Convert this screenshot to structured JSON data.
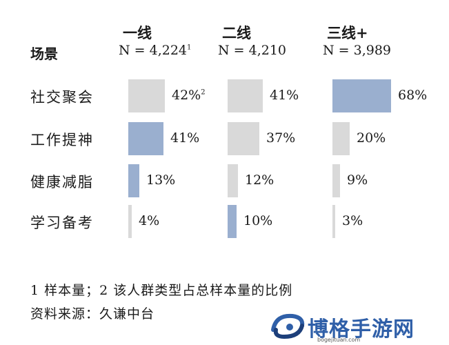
{
  "chart_data": {
    "type": "table",
    "row_header": "场景",
    "columns": [
      {
        "title": "一线",
        "n_label": "N = 4,224",
        "n_sup": "1"
      },
      {
        "title": "二线",
        "n_label": "N = 4,210",
        "n_sup": ""
      },
      {
        "title": "三线+",
        "n_label": "N = 3,989",
        "n_sup": ""
      }
    ],
    "rows": [
      {
        "label": "社交聚会",
        "values": [
          42,
          41,
          68
        ],
        "labels": [
          "42%",
          "41%",
          "68%"
        ],
        "sups": [
          "2",
          "",
          ""
        ],
        "highlight": [
          false,
          false,
          true
        ]
      },
      {
        "label": "工作提神",
        "values": [
          41,
          37,
          20
        ],
        "labels": [
          "41%",
          "37%",
          "20%"
        ],
        "sups": [
          "",
          "",
          ""
        ],
        "highlight": [
          true,
          false,
          false
        ]
      },
      {
        "label": "健康减脂",
        "values": [
          13,
          12,
          9
        ],
        "labels": [
          "13%",
          "12%",
          "9%"
        ],
        "sups": [
          "",
          "",
          ""
        ],
        "highlight": [
          true,
          false,
          false
        ]
      },
      {
        "label": "学习备考",
        "values": [
          4,
          10,
          3
        ],
        "labels": [
          "4%",
          "10%",
          "3%"
        ],
        "sups": [
          "",
          "",
          ""
        ],
        "highlight": [
          false,
          true,
          false
        ]
      }
    ],
    "unit": "%",
    "colors": {
      "highlight": "#9aafcf",
      "normal": "#d9d9d9"
    }
  },
  "footnotes": {
    "note": "1 样本量；2 该人群类型占总样本量的比例",
    "source": "资料来源：久谦中台"
  },
  "watermark": {
    "text": "博格手游网",
    "url": "bogejituan.com"
  }
}
